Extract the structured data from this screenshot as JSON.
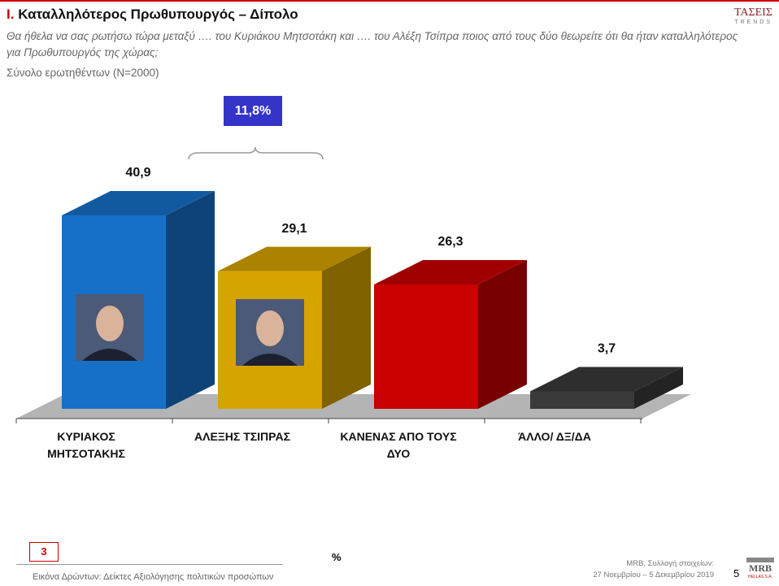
{
  "header": {
    "number": "I.",
    "logo_top": "ΤΑΣΕΙΣ",
    "logo_bottom": "TRENDS"
  },
  "chart_data": {
    "type": "bar3d",
    "title": "Καταλληλότερος Πρωθυπουργός – Δίπολο",
    "subtitle": "Θα ήθελα να σας ρωτήσω τώρα μεταξύ …. του Κυριάκου Μητσοτάκη και …. του  Αλέξη Τσίπρα ποιος από τους δύο θεωρείτε ότι θα ήταν καταλληλότερος για Πρωθυπουργός της χώρας;",
    "base_note": "Σύνολο ερωτηθέντων (N=2000)",
    "categories": [
      "ΚΥΡΙΑΚΟΣ ΜΗΤΣΟΤΑΚΗΣ",
      "ΑΛΕΞΗΣ ΤΣΙΠΡΑΣ",
      "ΚΑΝΕΝΑΣ ΑΠΟ ΤΟΥΣ ΔΥΟ",
      "ΆΛΛΟ/ ΔΞ/ΔΑ"
    ],
    "values": [
      40.9,
      29.1,
      26.3,
      3.7
    ],
    "value_labels": [
      "40,9",
      "29,1",
      "26,3",
      "3,7"
    ],
    "colors": [
      "#1670c8",
      "#d6a400",
      "#c80000",
      "#3a3a3a"
    ],
    "annotation": {
      "value": 11.8,
      "label": "11,8%"
    },
    "unit_label": "%"
  },
  "footer": {
    "page_box": "3",
    "source": "Εικόνα Δρώντων: Δείκτες Αξιολόγησης πολιτικών προσώπων",
    "collection": "MRB, Συλλογή στοιχείων:",
    "dates": "27 Νοεμβρίου – 5 Δεκεμβρίου 2019",
    "page_number": "5",
    "logo_top": "MRB",
    "logo_bottom": "HELLAS S.A."
  }
}
